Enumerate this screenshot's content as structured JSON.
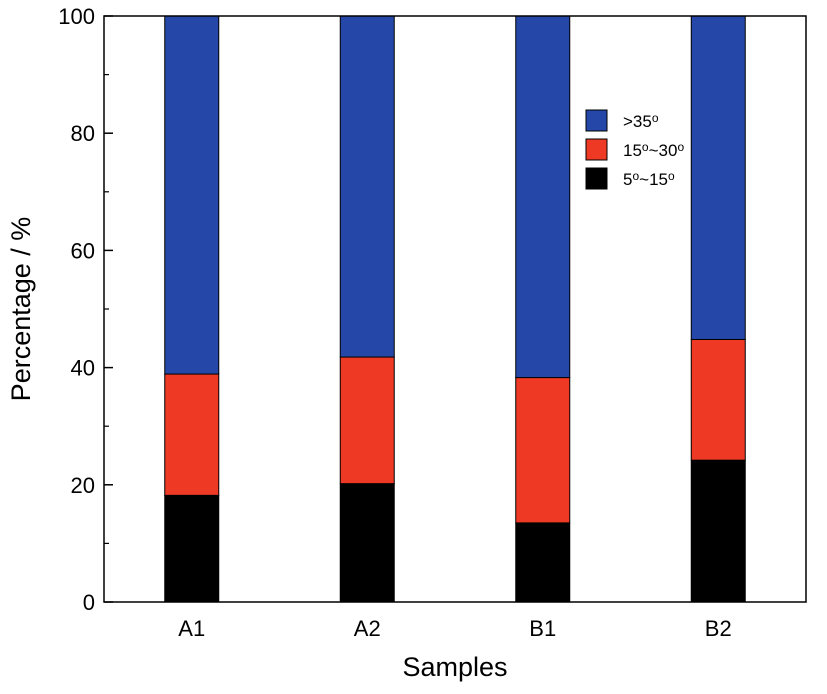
{
  "chart_data": {
    "type": "bar",
    "stacked": true,
    "categories": [
      "A1",
      "A2",
      "B1",
      "B2"
    ],
    "series": [
      {
        "name": "5°~15°",
        "label_main": "5",
        "label_sup1": "o",
        "label_mid": "~15",
        "label_sup2": "o",
        "label_end": "",
        "color": "#000000",
        "values": [
          18.2,
          20.2,
          13.5,
          24.2
        ]
      },
      {
        "name": "15°~30°",
        "label_main": "15",
        "label_sup1": "o",
        "label_mid": "~30",
        "label_sup2": "o",
        "label_end": "",
        "color": "#ee3a24",
        "values": [
          20.7,
          21.6,
          24.8,
          20.6
        ]
      },
      {
        "name": ">35°",
        "label_main": ">35",
        "label_sup1": "o",
        "label_mid": "",
        "label_sup2": "",
        "label_end": "",
        "color": "#2548a8",
        "values": [
          61.1,
          58.2,
          61.7,
          55.2
        ]
      }
    ],
    "legend_order": [
      2,
      1,
      0
    ],
    "legend_position": "top-right",
    "xlabel": "Samples",
    "ylabel": "Percentage / %",
    "ylim": [
      0,
      100
    ],
    "yticks": [
      0,
      20,
      40,
      60,
      80,
      100
    ],
    "ytick_labels": [
      "0",
      "20",
      "40",
      "60",
      "80",
      "100"
    ],
    "grid": false
  }
}
